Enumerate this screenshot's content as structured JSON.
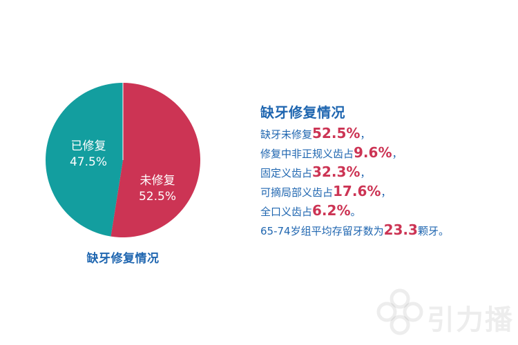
{
  "chart_data": {
    "type": "pie",
    "title": "缺牙修复情况",
    "slices": [
      {
        "label": "已修复",
        "value": 47.5,
        "value_text": "47.5%",
        "color": "#139e9f"
      },
      {
        "label": "未修复",
        "value": 52.5,
        "value_text": "52.5%",
        "color": "#cc3454"
      }
    ]
  },
  "info": {
    "title": "缺牙修复情况",
    "lines": [
      {
        "pre": "缺牙未修复",
        "num": "52.5%",
        "post": "，"
      },
      {
        "pre": "修复中非正规义齿占",
        "num": "9.6%",
        "post": "，"
      },
      {
        "pre": "固定义齿占",
        "num": "32.3%",
        "post": "，"
      },
      {
        "pre": "可摘局部义齿占",
        "num": "17.6%",
        "post": "，"
      },
      {
        "pre": "全口义齿占",
        "num": "6.2%",
        "post": "。"
      },
      {
        "pre": "65-74岁组平均存留牙数为",
        "num": "23.3",
        "post": "颗牙。"
      }
    ]
  },
  "watermark": {
    "text": "引力播"
  }
}
